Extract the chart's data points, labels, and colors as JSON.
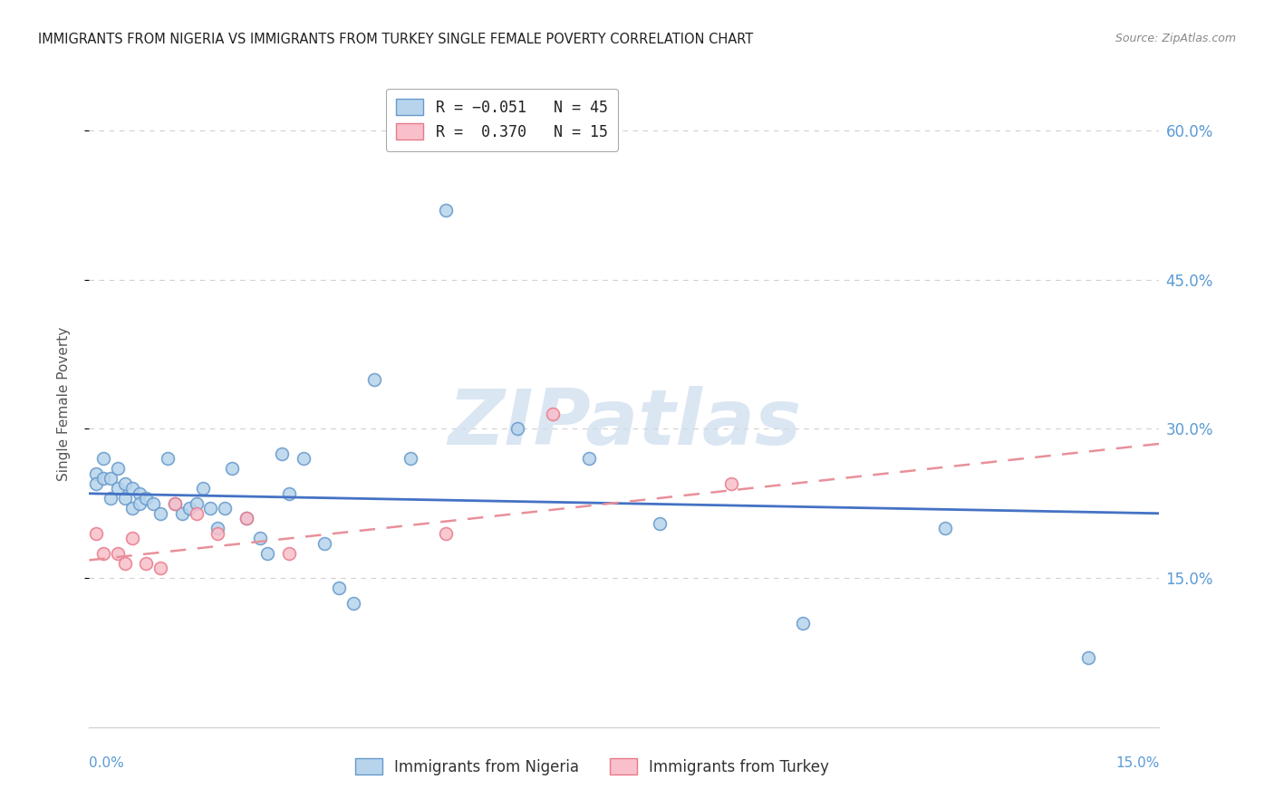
{
  "title": "IMMIGRANTS FROM NIGERIA VS IMMIGRANTS FROM TURKEY SINGLE FEMALE POVERTY CORRELATION CHART",
  "source": "Source: ZipAtlas.com",
  "ylabel": "Single Female Poverty",
  "x_min": 0.0,
  "x_max": 0.15,
  "y_min": 0.0,
  "y_max": 0.65,
  "y_ticks": [
    0.15,
    0.3,
    0.45,
    0.6
  ],
  "y_tick_labels": [
    "15.0%",
    "30.0%",
    "45.0%",
    "60.0%"
  ],
  "nigeria_color_face": "#b8d4ec",
  "nigeria_color_edge": "#6699cc",
  "turkey_color_face": "#f9c0cb",
  "turkey_color_edge": "#e87a8a",
  "nigeria_scatter_x": [
    0.001,
    0.001,
    0.002,
    0.002,
    0.003,
    0.003,
    0.004,
    0.004,
    0.005,
    0.005,
    0.006,
    0.006,
    0.007,
    0.007,
    0.008,
    0.009,
    0.01,
    0.011,
    0.012,
    0.013,
    0.014,
    0.015,
    0.016,
    0.017,
    0.018,
    0.019,
    0.02,
    0.022,
    0.024,
    0.025,
    0.027,
    0.028,
    0.03,
    0.033,
    0.035,
    0.037,
    0.04,
    0.045,
    0.05,
    0.06,
    0.07,
    0.08,
    0.1,
    0.12,
    0.14
  ],
  "nigeria_scatter_y": [
    0.255,
    0.245,
    0.27,
    0.25,
    0.23,
    0.25,
    0.24,
    0.26,
    0.23,
    0.245,
    0.24,
    0.22,
    0.235,
    0.225,
    0.23,
    0.225,
    0.215,
    0.27,
    0.225,
    0.215,
    0.22,
    0.225,
    0.24,
    0.22,
    0.2,
    0.22,
    0.26,
    0.21,
    0.19,
    0.175,
    0.275,
    0.235,
    0.27,
    0.185,
    0.14,
    0.125,
    0.35,
    0.27,
    0.52,
    0.3,
    0.27,
    0.205,
    0.105,
    0.2,
    0.07
  ],
  "turkey_scatter_x": [
    0.001,
    0.002,
    0.004,
    0.005,
    0.006,
    0.008,
    0.01,
    0.012,
    0.015,
    0.018,
    0.022,
    0.028,
    0.05,
    0.065,
    0.09
  ],
  "turkey_scatter_y": [
    0.195,
    0.175,
    0.175,
    0.165,
    0.19,
    0.165,
    0.16,
    0.225,
    0.215,
    0.195,
    0.21,
    0.175,
    0.195,
    0.315,
    0.245
  ],
  "nigeria_trend_x": [
    0.0,
    0.15
  ],
  "nigeria_trend_y": [
    0.235,
    0.215
  ],
  "turkey_trend_x": [
    0.0,
    0.15
  ],
  "turkey_trend_y": [
    0.168,
    0.285
  ],
  "watermark_text": "ZIPatlas",
  "watermark_color": "#ccdcee",
  "background_color": "#ffffff",
  "grid_color": "#d0d0d0",
  "title_color": "#222222",
  "source_color": "#888888",
  "axis_label_color": "#5b9bd5",
  "marker_size": 100,
  "nigeria_trend_color": "#4472c4",
  "turkey_trend_color": "#e8909a"
}
